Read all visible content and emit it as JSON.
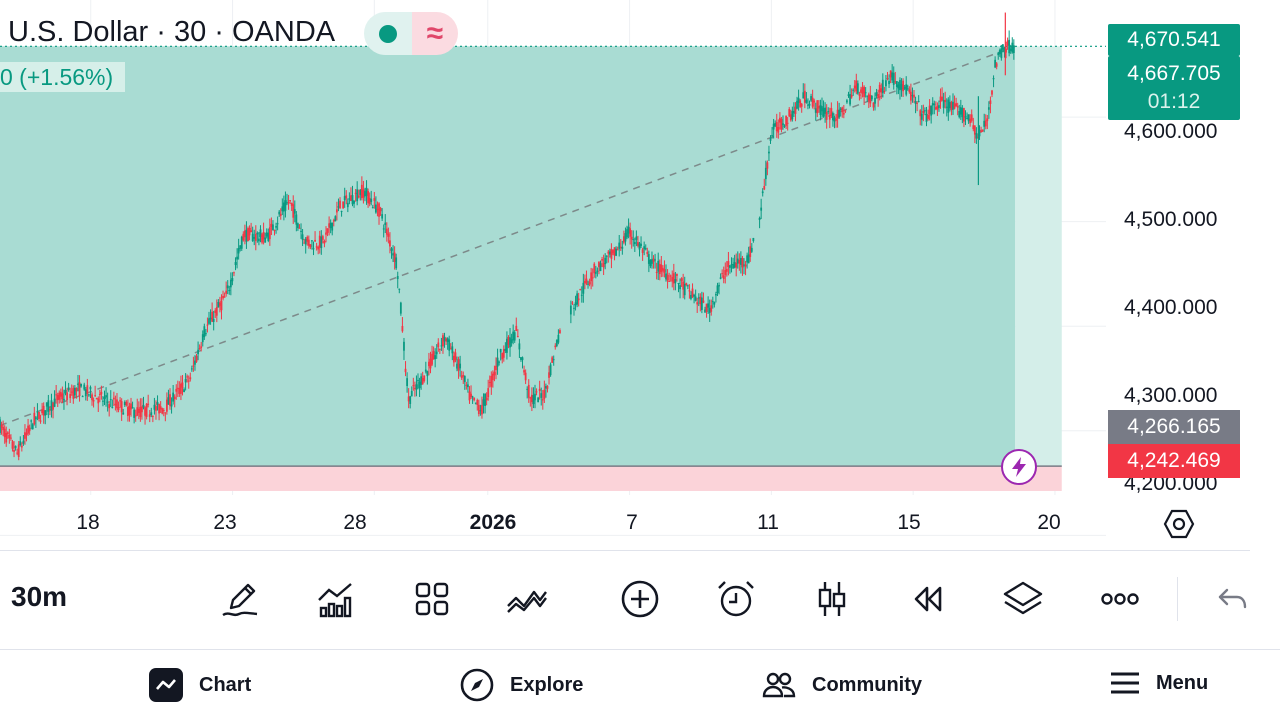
{
  "header": {
    "title": "U.S. Dollar · 30 · OANDA",
    "change_label": "0 (+1.56%)"
  },
  "price_tags": {
    "high": "4,670.541",
    "current": "4,667.705",
    "countdown": "01:12",
    "gray_level": "4,266.165",
    "red_level": "4,242.469"
  },
  "chart_data": {
    "type": "candlestick",
    "y_ticks": [
      "4,600.000",
      "4,500.000",
      "4,400.000",
      "4,300.000",
      "4,200.000"
    ],
    "y_tick_values": [
      4600,
      4500,
      4400,
      4300,
      4200
    ],
    "x_ticks": [
      "18",
      "23",
      "28",
      "2026",
      "7",
      "11",
      "15",
      "20"
    ],
    "x_tick_positions": [
      18,
      23,
      28,
      32,
      37,
      42,
      47,
      52
    ],
    "ylim": [
      4186,
      4712
    ],
    "xlim": [
      14.8,
      53.8
    ],
    "current_price": 4667.705,
    "profit_zone": [
      4266.165,
      4667.705
    ],
    "loss_zone": [
      4242.469,
      4266.165
    ],
    "price_path": [
      [
        14.8,
        4305
      ],
      [
        15.4,
        4278
      ],
      [
        16.0,
        4310
      ],
      [
        16.8,
        4330
      ],
      [
        17.6,
        4340
      ],
      [
        18.6,
        4328
      ],
      [
        19.6,
        4318
      ],
      [
        20.6,
        4322
      ],
      [
        21.5,
        4350
      ],
      [
        22.0,
        4395
      ],
      [
        22.8,
        4430
      ],
      [
        23.4,
        4488
      ],
      [
        24.2,
        4485
      ],
      [
        25.0,
        4520
      ],
      [
        25.6,
        4480
      ],
      [
        26.2,
        4480
      ],
      [
        26.8,
        4515
      ],
      [
        27.6,
        4530
      ],
      [
        28.2,
        4510
      ],
      [
        28.8,
        4460
      ],
      [
        29.2,
        4330
      ],
      [
        29.8,
        4355
      ],
      [
        30.5,
        4390
      ],
      [
        31.0,
        4360
      ],
      [
        31.4,
        4330
      ],
      [
        31.8,
        4320
      ],
      [
        32.4,
        4370
      ],
      [
        33.0,
        4395
      ],
      [
        33.5,
        4330
      ],
      [
        34.0,
        4335
      ],
      [
        34.5,
        4392
      ],
      [
        35.0,
        4420
      ],
      [
        35.8,
        4455
      ],
      [
        36.5,
        4470
      ],
      [
        37.0,
        4490
      ],
      [
        37.8,
        4460
      ],
      [
        38.6,
        4445
      ],
      [
        39.2,
        4430
      ],
      [
        39.8,
        4415
      ],
      [
        40.4,
        4455
      ],
      [
        41.2,
        4465
      ],
      [
        41.6,
        4505
      ],
      [
        42.0,
        4585
      ],
      [
        42.6,
        4600
      ],
      [
        43.2,
        4620
      ],
      [
        43.8,
        4605
      ],
      [
        44.4,
        4600
      ],
      [
        45.0,
        4630
      ],
      [
        45.6,
        4615
      ],
      [
        46.2,
        4640
      ],
      [
        46.8,
        4625
      ],
      [
        47.4,
        4600
      ],
      [
        48.0,
        4615
      ],
      [
        48.6,
        4605
      ],
      [
        49.0,
        4600
      ],
      [
        49.3,
        4580
      ],
      [
        49.6,
        4595
      ],
      [
        49.9,
        4650
      ],
      [
        50.2,
        4668
      ],
      [
        50.6,
        4667.7
      ]
    ]
  },
  "toolbar": {
    "interval": "30m",
    "tools": [
      "pencil-icon",
      "indicators-icon",
      "grid-icon",
      "patterns-icon",
      "add-circle-icon",
      "alarm-icon",
      "candles-icon",
      "replay-icon",
      "layers-icon",
      "more-icon"
    ]
  },
  "nav": {
    "chart": "Chart",
    "explore": "Explore",
    "community": "Community",
    "menu": "Menu"
  },
  "colors": {
    "up": "#089981",
    "down": "#f23645",
    "profit_fill": "#a9dcd3",
    "loss_fill": "#fbd3d9"
  }
}
